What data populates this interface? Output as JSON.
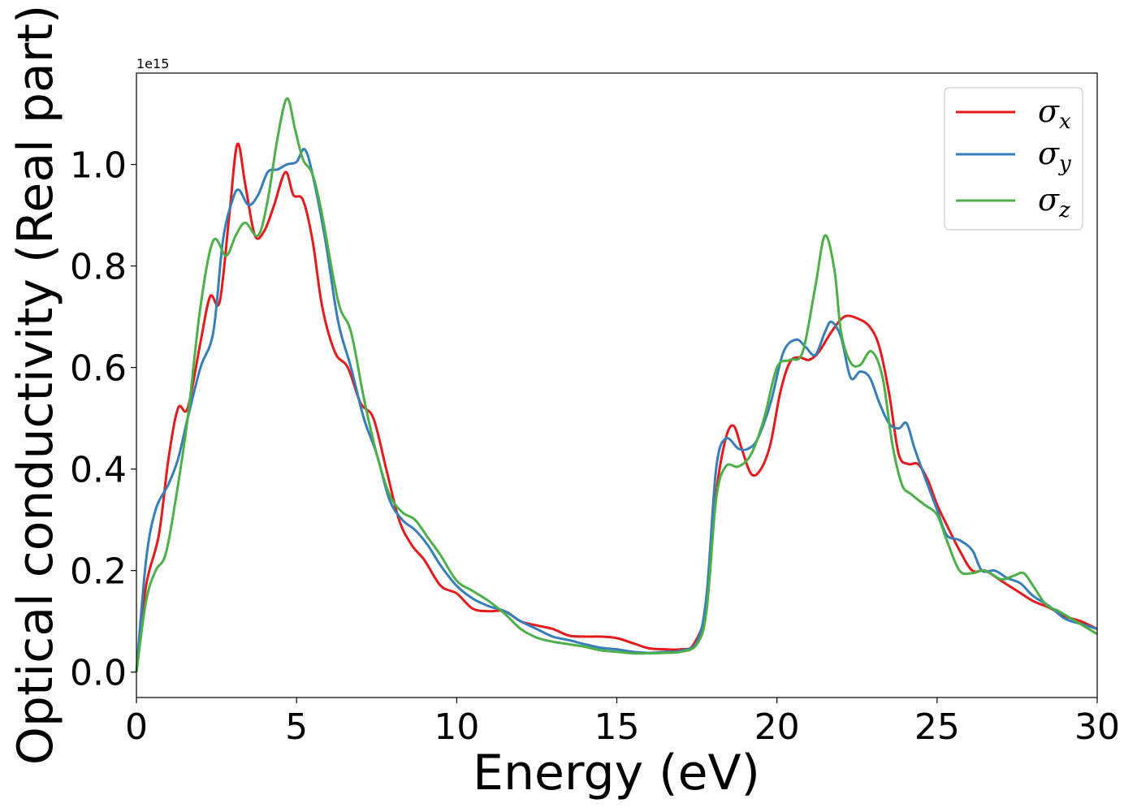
{
  "chart_data": {
    "type": "line",
    "title": "",
    "xlabel": "Energy (eV)",
    "ylabel": "Optical conductivity (Real part)",
    "y_offset_label": "1e15",
    "xlim": [
      0,
      30
    ],
    "ylim": [
      -0.05,
      1.18
    ],
    "xticks": [
      0,
      5,
      10,
      15,
      20,
      25,
      30
    ],
    "xtick_labels": [
      "0",
      "5",
      "10",
      "15",
      "20",
      "25",
      "30"
    ],
    "yticks": [
      0.0,
      0.2,
      0.4,
      0.6,
      0.8,
      1.0
    ],
    "ytick_labels": [
      "0.0",
      "0.2",
      "0.4",
      "0.6",
      "0.8",
      "1.0"
    ],
    "grid": false,
    "legend_position": "top-right",
    "series": [
      {
        "name": "σx",
        "legend_base": "σ",
        "legend_sub": "x",
        "color": "#e41a1c",
        "points": [
          [
            0,
            0
          ],
          [
            0.3,
            0.17
          ],
          [
            0.7,
            0.27
          ],
          [
            1.0,
            0.42
          ],
          [
            1.3,
            0.52
          ],
          [
            1.6,
            0.52
          ],
          [
            2.0,
            0.65
          ],
          [
            2.3,
            0.74
          ],
          [
            2.6,
            0.73
          ],
          [
            2.9,
            0.9
          ],
          [
            3.15,
            1.04
          ],
          [
            3.4,
            0.96
          ],
          [
            3.7,
            0.86
          ],
          [
            4.0,
            0.87
          ],
          [
            4.3,
            0.92
          ],
          [
            4.65,
            0.985
          ],
          [
            4.9,
            0.94
          ],
          [
            5.2,
            0.93
          ],
          [
            5.5,
            0.85
          ],
          [
            5.8,
            0.72
          ],
          [
            6.2,
            0.63
          ],
          [
            6.6,
            0.6
          ],
          [
            7.0,
            0.53
          ],
          [
            7.4,
            0.5
          ],
          [
            7.8,
            0.4
          ],
          [
            8.2,
            0.3
          ],
          [
            8.6,
            0.25
          ],
          [
            9.0,
            0.22
          ],
          [
            9.5,
            0.17
          ],
          [
            10.0,
            0.155
          ],
          [
            10.5,
            0.125
          ],
          [
            11.0,
            0.12
          ],
          [
            11.5,
            0.12
          ],
          [
            12.0,
            0.1
          ],
          [
            12.5,
            0.092
          ],
          [
            13.0,
            0.085
          ],
          [
            13.5,
            0.072
          ],
          [
            14.0,
            0.07
          ],
          [
            14.5,
            0.07
          ],
          [
            15.0,
            0.067
          ],
          [
            15.5,
            0.057
          ],
          [
            16.0,
            0.047
          ],
          [
            16.5,
            0.045
          ],
          [
            17.0,
            0.045
          ],
          [
            17.4,
            0.055
          ],
          [
            17.8,
            0.13
          ],
          [
            18.1,
            0.35
          ],
          [
            18.4,
            0.46
          ],
          [
            18.65,
            0.485
          ],
          [
            18.9,
            0.44
          ],
          [
            19.2,
            0.39
          ],
          [
            19.5,
            0.4
          ],
          [
            19.8,
            0.45
          ],
          [
            20.1,
            0.55
          ],
          [
            20.4,
            0.61
          ],
          [
            20.7,
            0.62
          ],
          [
            21.0,
            0.615
          ],
          [
            21.3,
            0.63
          ],
          [
            21.7,
            0.67
          ],
          [
            22.1,
            0.7
          ],
          [
            22.5,
            0.697
          ],
          [
            22.9,
            0.68
          ],
          [
            23.2,
            0.64
          ],
          [
            23.5,
            0.55
          ],
          [
            23.8,
            0.43
          ],
          [
            24.1,
            0.41
          ],
          [
            24.4,
            0.41
          ],
          [
            24.7,
            0.38
          ],
          [
            25.0,
            0.33
          ],
          [
            25.3,
            0.29
          ],
          [
            25.7,
            0.24
          ],
          [
            26.1,
            0.2
          ],
          [
            26.5,
            0.2
          ],
          [
            27.0,
            0.18
          ],
          [
            27.5,
            0.16
          ],
          [
            28.0,
            0.14
          ],
          [
            28.5,
            0.127
          ],
          [
            29.0,
            0.11
          ],
          [
            29.5,
            0.1
          ],
          [
            30.0,
            0.085
          ]
        ]
      },
      {
        "name": "σy",
        "legend_base": "σ",
        "legend_sub": "y",
        "color": "#377eb8",
        "points": [
          [
            0,
            0
          ],
          [
            0.3,
            0.22
          ],
          [
            0.6,
            0.32
          ],
          [
            1.0,
            0.37
          ],
          [
            1.3,
            0.42
          ],
          [
            1.6,
            0.5
          ],
          [
            2.0,
            0.6
          ],
          [
            2.4,
            0.67
          ],
          [
            2.7,
            0.85
          ],
          [
            3.0,
            0.93
          ],
          [
            3.2,
            0.95
          ],
          [
            3.5,
            0.92
          ],
          [
            3.8,
            0.94
          ],
          [
            4.1,
            0.985
          ],
          [
            4.4,
            0.99
          ],
          [
            4.7,
            1.0
          ],
          [
            5.0,
            1.005
          ],
          [
            5.25,
            1.03
          ],
          [
            5.5,
            0.98
          ],
          [
            5.9,
            0.85
          ],
          [
            6.3,
            0.69
          ],
          [
            6.7,
            0.6
          ],
          [
            7.1,
            0.5
          ],
          [
            7.5,
            0.43
          ],
          [
            7.9,
            0.34
          ],
          [
            8.3,
            0.3
          ],
          [
            8.7,
            0.28
          ],
          [
            9.1,
            0.25
          ],
          [
            9.5,
            0.21
          ],
          [
            10.0,
            0.17
          ],
          [
            10.5,
            0.145
          ],
          [
            11.0,
            0.13
          ],
          [
            11.5,
            0.12
          ],
          [
            12.0,
            0.1
          ],
          [
            12.5,
            0.085
          ],
          [
            13.0,
            0.07
          ],
          [
            13.5,
            0.063
          ],
          [
            14.0,
            0.055
          ],
          [
            14.5,
            0.048
          ],
          [
            15.0,
            0.045
          ],
          [
            15.5,
            0.04
          ],
          [
            16.0,
            0.038
          ],
          [
            16.5,
            0.04
          ],
          [
            17.0,
            0.042
          ],
          [
            17.5,
            0.06
          ],
          [
            17.8,
            0.15
          ],
          [
            18.1,
            0.4
          ],
          [
            18.4,
            0.46
          ],
          [
            18.8,
            0.44
          ],
          [
            19.1,
            0.44
          ],
          [
            19.4,
            0.46
          ],
          [
            19.8,
            0.53
          ],
          [
            20.2,
            0.63
          ],
          [
            20.6,
            0.655
          ],
          [
            20.9,
            0.64
          ],
          [
            21.2,
            0.625
          ],
          [
            21.5,
            0.67
          ],
          [
            21.7,
            0.69
          ],
          [
            22.0,
            0.66
          ],
          [
            22.3,
            0.58
          ],
          [
            22.6,
            0.592
          ],
          [
            22.9,
            0.58
          ],
          [
            23.2,
            0.53
          ],
          [
            23.5,
            0.49
          ],
          [
            23.8,
            0.48
          ],
          [
            24.05,
            0.49
          ],
          [
            24.3,
            0.44
          ],
          [
            24.7,
            0.37
          ],
          [
            25.0,
            0.32
          ],
          [
            25.3,
            0.27
          ],
          [
            25.7,
            0.26
          ],
          [
            26.1,
            0.24
          ],
          [
            26.4,
            0.2
          ],
          [
            26.8,
            0.2
          ],
          [
            27.2,
            0.185
          ],
          [
            27.6,
            0.175
          ],
          [
            28.0,
            0.15
          ],
          [
            28.5,
            0.13
          ],
          [
            29.0,
            0.105
          ],
          [
            29.5,
            0.095
          ],
          [
            30.0,
            0.085
          ]
        ]
      },
      {
        "name": "σz",
        "legend_base": "σ",
        "legend_sub": "z",
        "color": "#4daf4a",
        "points": [
          [
            0,
            0
          ],
          [
            0.3,
            0.14
          ],
          [
            0.6,
            0.2
          ],
          [
            0.9,
            0.23
          ],
          [
            1.2,
            0.33
          ],
          [
            1.6,
            0.5
          ],
          [
            2.0,
            0.72
          ],
          [
            2.4,
            0.85
          ],
          [
            2.8,
            0.82
          ],
          [
            3.1,
            0.86
          ],
          [
            3.4,
            0.885
          ],
          [
            3.8,
            0.86
          ],
          [
            4.1,
            0.93
          ],
          [
            4.4,
            1.05
          ],
          [
            4.7,
            1.13
          ],
          [
            4.95,
            1.07
          ],
          [
            5.2,
            1.01
          ],
          [
            5.5,
            0.98
          ],
          [
            5.8,
            0.9
          ],
          [
            6.3,
            0.73
          ],
          [
            6.7,
            0.67
          ],
          [
            7.1,
            0.54
          ],
          [
            7.5,
            0.43
          ],
          [
            7.9,
            0.35
          ],
          [
            8.3,
            0.315
          ],
          [
            8.7,
            0.3
          ],
          [
            9.1,
            0.265
          ],
          [
            9.5,
            0.23
          ],
          [
            10.0,
            0.18
          ],
          [
            10.5,
            0.16
          ],
          [
            11.0,
            0.14
          ],
          [
            11.5,
            0.115
          ],
          [
            12.0,
            0.085
          ],
          [
            12.5,
            0.068
          ],
          [
            13.0,
            0.06
          ],
          [
            13.5,
            0.055
          ],
          [
            14.0,
            0.05
          ],
          [
            14.5,
            0.043
          ],
          [
            15.0,
            0.04
          ],
          [
            15.5,
            0.037
          ],
          [
            16.0,
            0.037
          ],
          [
            16.5,
            0.038
          ],
          [
            17.0,
            0.04
          ],
          [
            17.5,
            0.055
          ],
          [
            17.8,
            0.12
          ],
          [
            18.1,
            0.34
          ],
          [
            18.4,
            0.405
          ],
          [
            18.8,
            0.405
          ],
          [
            19.2,
            0.43
          ],
          [
            19.6,
            0.5
          ],
          [
            20.0,
            0.6
          ],
          [
            20.4,
            0.615
          ],
          [
            20.8,
            0.63
          ],
          [
            21.2,
            0.76
          ],
          [
            21.5,
            0.86
          ],
          [
            21.8,
            0.79
          ],
          [
            22.0,
            0.67
          ],
          [
            22.3,
            0.61
          ],
          [
            22.6,
            0.605
          ],
          [
            22.95,
            0.632
          ],
          [
            23.3,
            0.58
          ],
          [
            23.6,
            0.45
          ],
          [
            23.9,
            0.37
          ],
          [
            24.2,
            0.35
          ],
          [
            24.6,
            0.33
          ],
          [
            25.0,
            0.31
          ],
          [
            25.3,
            0.26
          ],
          [
            25.7,
            0.2
          ],
          [
            26.1,
            0.195
          ],
          [
            26.5,
            0.2
          ],
          [
            27.0,
            0.183
          ],
          [
            27.4,
            0.19
          ],
          [
            27.7,
            0.195
          ],
          [
            28.0,
            0.17
          ],
          [
            28.4,
            0.133
          ],
          [
            28.8,
            0.12
          ],
          [
            29.2,
            0.105
          ],
          [
            29.6,
            0.09
          ],
          [
            30.0,
            0.075
          ]
        ]
      }
    ]
  }
}
